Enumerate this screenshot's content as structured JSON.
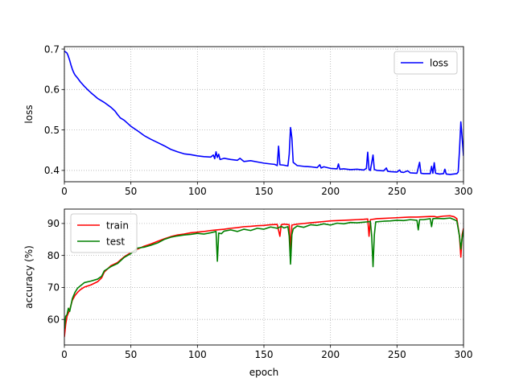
{
  "chart_data": [
    {
      "type": "line",
      "xlabel": "",
      "ylabel": "loss",
      "xlim": [
        0,
        300
      ],
      "ylim": [
        0.372,
        0.706
      ],
      "xticks": [
        0,
        50,
        100,
        150,
        200,
        250,
        300
      ],
      "yticks": [
        0.4,
        0.5,
        0.6,
        0.7
      ],
      "ytick_labels": [
        "0.4",
        "0.5",
        "0.6",
        "0.7"
      ],
      "grid": true,
      "legend_position": "upper right",
      "series": [
        {
          "name": "loss",
          "color": "#0000ff",
          "points": [
            [
              0,
              0.695
            ],
            [
              2,
              0.69
            ],
            [
              3,
              0.682
            ],
            [
              4,
              0.672
            ],
            [
              5,
              0.66
            ],
            [
              6,
              0.65
            ],
            [
              7,
              0.642
            ],
            [
              8,
              0.636
            ],
            [
              10,
              0.628
            ],
            [
              12,
              0.619
            ],
            [
              15,
              0.608
            ],
            [
              18,
              0.598
            ],
            [
              20,
              0.592
            ],
            [
              25,
              0.578
            ],
            [
              30,
              0.568
            ],
            [
              35,
              0.556
            ],
            [
              38,
              0.547
            ],
            [
              40,
              0.538
            ],
            [
              42,
              0.53
            ],
            [
              45,
              0.524
            ],
            [
              50,
              0.509
            ],
            [
              55,
              0.498
            ],
            [
              60,
              0.486
            ],
            [
              65,
              0.477
            ],
            [
              70,
              0.469
            ],
            [
              75,
              0.461
            ],
            [
              80,
              0.452
            ],
            [
              85,
              0.446
            ],
            [
              90,
              0.441
            ],
            [
              95,
              0.439
            ],
            [
              100,
              0.436
            ],
            [
              105,
              0.434
            ],
            [
              110,
              0.433
            ],
            [
              112,
              0.438
            ],
            [
              113,
              0.429
            ],
            [
              114,
              0.446
            ],
            [
              115,
              0.432
            ],
            [
              116,
              0.44
            ],
            [
              117,
              0.427
            ],
            [
              120,
              0.43
            ],
            [
              125,
              0.427
            ],
            [
              130,
              0.425
            ],
            [
              132,
              0.43
            ],
            [
              135,
              0.422
            ],
            [
              140,
              0.424
            ],
            [
              145,
              0.421
            ],
            [
              150,
              0.418
            ],
            [
              155,
              0.416
            ],
            [
              158,
              0.415
            ],
            [
              160,
              0.412
            ],
            [
              161,
              0.46
            ],
            [
              162,
              0.414
            ],
            [
              165,
              0.413
            ],
            [
              168,
              0.411
            ],
            [
              169,
              0.44
            ],
            [
              170,
              0.506
            ],
            [
              171,
              0.48
            ],
            [
              172,
              0.42
            ],
            [
              175,
              0.412
            ],
            [
              180,
              0.41
            ],
            [
              185,
              0.409
            ],
            [
              190,
              0.407
            ],
            [
              192,
              0.414
            ],
            [
              193,
              0.406
            ],
            [
              195,
              0.409
            ],
            [
              200,
              0.405
            ],
            [
              205,
              0.404
            ],
            [
              206,
              0.416
            ],
            [
              207,
              0.403
            ],
            [
              210,
              0.404
            ],
            [
              215,
              0.402
            ],
            [
              220,
              0.403
            ],
            [
              225,
              0.401
            ],
            [
              227,
              0.405
            ],
            [
              228,
              0.445
            ],
            [
              229,
              0.402
            ],
            [
              230,
              0.4
            ],
            [
              232,
              0.438
            ],
            [
              233,
              0.402
            ],
            [
              235,
              0.4
            ],
            [
              240,
              0.399
            ],
            [
              242,
              0.406
            ],
            [
              243,
              0.398
            ],
            [
              245,
              0.397
            ],
            [
              250,
              0.396
            ],
            [
              252,
              0.401
            ],
            [
              253,
              0.396
            ],
            [
              255,
              0.395
            ],
            [
              258,
              0.399
            ],
            [
              260,
              0.394
            ],
            [
              265,
              0.393
            ],
            [
              267,
              0.42
            ],
            [
              268,
              0.393
            ],
            [
              270,
              0.392
            ],
            [
              275,
              0.392
            ],
            [
              276,
              0.41
            ],
            [
              277,
              0.393
            ],
            [
              278,
              0.419
            ],
            [
              279,
              0.393
            ],
            [
              282,
              0.391
            ],
            [
              285,
              0.392
            ],
            [
              286,
              0.403
            ],
            [
              287,
              0.391
            ],
            [
              290,
              0.39
            ],
            [
              295,
              0.392
            ],
            [
              296,
              0.396
            ],
            [
              297,
              0.45
            ],
            [
              298,
              0.52
            ],
            [
              299,
              0.48
            ],
            [
              300,
              0.436
            ]
          ]
        }
      ]
    },
    {
      "type": "line",
      "xlabel": "epoch",
      "ylabel": "accuracy (%)",
      "xlim": [
        0,
        300
      ],
      "ylim": [
        52,
        94.5
      ],
      "xticks": [
        0,
        50,
        100,
        150,
        200,
        250,
        300
      ],
      "yticks": [
        60,
        70,
        80,
        90
      ],
      "ytick_labels": [
        "60",
        "70",
        "80",
        "90"
      ],
      "grid": true,
      "legend_position": "upper left",
      "series": [
        {
          "name": "train",
          "color": "#ff0000",
          "points": [
            [
              0,
              54.5
            ],
            [
              1,
              58.5
            ],
            [
              2,
              61.0
            ],
            [
              4,
              63.0
            ],
            [
              6,
              66.0
            ],
            [
              8,
              67.5
            ],
            [
              10,
              68.5
            ],
            [
              12,
              69.3
            ],
            [
              15,
              70.1
            ],
            [
              20,
              70.8
            ],
            [
              25,
              71.8
            ],
            [
              28,
              73.0
            ],
            [
              30,
              74.8
            ],
            [
              35,
              76.8
            ],
            [
              40,
              77.8
            ],
            [
              45,
              79.6
            ],
            [
              50,
              80.9
            ],
            [
              55,
              82.0
            ],
            [
              60,
              82.9
            ],
            [
              65,
              83.6
            ],
            [
              70,
              84.4
            ],
            [
              75,
              85.2
            ],
            [
              80,
              85.9
            ],
            [
              85,
              86.4
            ],
            [
              90,
              86.7
            ],
            [
              95,
              87.1
            ],
            [
              100,
              87.3
            ],
            [
              105,
              87.5
            ],
            [
              110,
              87.8
            ],
            [
              115,
              88.0
            ],
            [
              120,
              88.2
            ],
            [
              125,
              88.5
            ],
            [
              130,
              88.7
            ],
            [
              135,
              89.0
            ],
            [
              140,
              89.1
            ],
            [
              145,
              89.3
            ],
            [
              150,
              89.4
            ],
            [
              155,
              89.6
            ],
            [
              160,
              89.7
            ],
            [
              162,
              86.0
            ],
            [
              163,
              89.6
            ],
            [
              165,
              89.8
            ],
            [
              169,
              89.6
            ],
            [
              170,
              82.0
            ],
            [
              171,
              89.5
            ],
            [
              175,
              89.8
            ],
            [
              180,
              90.0
            ],
            [
              185,
              90.2
            ],
            [
              190,
              90.4
            ],
            [
              195,
              90.6
            ],
            [
              200,
              90.8
            ],
            [
              205,
              90.9
            ],
            [
              210,
              91.0
            ],
            [
              215,
              91.1
            ],
            [
              220,
              91.2
            ],
            [
              225,
              91.3
            ],
            [
              228,
              91.4
            ],
            [
              229,
              86.0
            ],
            [
              230,
              91.2
            ],
            [
              235,
              91.5
            ],
            [
              240,
              91.6
            ],
            [
              245,
              91.7
            ],
            [
              250,
              91.8
            ],
            [
              255,
              91.9
            ],
            [
              260,
              92.0
            ],
            [
              265,
              92.0
            ],
            [
              270,
              92.1
            ],
            [
              275,
              92.2
            ],
            [
              278,
              92.2
            ],
            [
              280,
              92.0
            ],
            [
              285,
              92.3
            ],
            [
              290,
              92.4
            ],
            [
              293,
              92.1
            ],
            [
              295,
              91.5
            ],
            [
              297,
              86.0
            ],
            [
              298,
              79.5
            ],
            [
              299,
              86.5
            ],
            [
              300,
              88.5
            ]
          ]
        },
        {
          "name": "test",
          "color": "#008000",
          "points": [
            [
              0,
              57.0
            ],
            [
              1,
              61.0
            ],
            [
              2,
              61.5
            ],
            [
              3,
              63.5
            ],
            [
              4,
              62.5
            ],
            [
              6,
              66.5
            ],
            [
              8,
              68.5
            ],
            [
              10,
              69.8
            ],
            [
              12,
              70.5
            ],
            [
              15,
              71.5
            ],
            [
              20,
              72.0
            ],
            [
              25,
              72.6
            ],
            [
              28,
              73.5
            ],
            [
              30,
              75.2
            ],
            [
              35,
              76.5
            ],
            [
              40,
              77.5
            ],
            [
              45,
              79.4
            ],
            [
              50,
              80.6
            ],
            [
              55,
              82.3
            ],
            [
              60,
              82.6
            ],
            [
              65,
              83.2
            ],
            [
              70,
              83.9
            ],
            [
              75,
              85.0
            ],
            [
              80,
              85.7
            ],
            [
              85,
              86.1
            ],
            [
              90,
              86.4
            ],
            [
              95,
              86.6
            ],
            [
              100,
              86.9
            ],
            [
              105,
              86.7
            ],
            [
              110,
              87.1
            ],
            [
              114,
              87.5
            ],
            [
              115,
              78.2
            ],
            [
              116,
              87.0
            ],
            [
              118,
              86.8
            ],
            [
              120,
              87.6
            ],
            [
              125,
              88.0
            ],
            [
              130,
              87.5
            ],
            [
              135,
              88.2
            ],
            [
              140,
              87.8
            ],
            [
              145,
              88.5
            ],
            [
              150,
              88.2
            ],
            [
              155,
              88.9
            ],
            [
              160,
              88.5
            ],
            [
              163,
              89.1
            ],
            [
              165,
              88.6
            ],
            [
              168,
              89.0
            ],
            [
              169,
              86.0
            ],
            [
              170,
              77.3
            ],
            [
              171,
              86.5
            ],
            [
              172,
              88.3
            ],
            [
              175,
              89.2
            ],
            [
              180,
              88.8
            ],
            [
              185,
              89.6
            ],
            [
              190,
              89.4
            ],
            [
              195,
              89.9
            ],
            [
              200,
              89.5
            ],
            [
              205,
              90.1
            ],
            [
              210,
              89.9
            ],
            [
              215,
              90.3
            ],
            [
              220,
              90.2
            ],
            [
              225,
              90.4
            ],
            [
              230,
              90.6
            ],
            [
              231,
              86.0
            ],
            [
              232,
              76.5
            ],
            [
              233,
              86.5
            ],
            [
              234,
              90.5
            ],
            [
              240,
              90.7
            ],
            [
              245,
              90.8
            ],
            [
              250,
              91.0
            ],
            [
              255,
              90.9
            ],
            [
              260,
              91.2
            ],
            [
              265,
              91.0
            ],
            [
              266,
              88.0
            ],
            [
              267,
              91.2
            ],
            [
              270,
              91.2
            ],
            [
              275,
              91.5
            ],
            [
              276,
              89.0
            ],
            [
              277,
              91.5
            ],
            [
              280,
              91.6
            ],
            [
              285,
              91.5
            ],
            [
              290,
              91.7
            ],
            [
              293,
              91.2
            ],
            [
              295,
              90.8
            ],
            [
              297,
              86.0
            ],
            [
              298,
              82.0
            ],
            [
              299,
              85.5
            ],
            [
              300,
              88.0
            ]
          ]
        }
      ]
    }
  ]
}
